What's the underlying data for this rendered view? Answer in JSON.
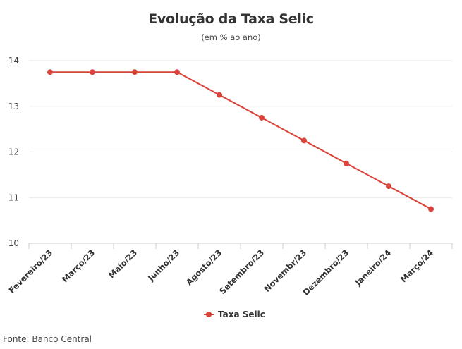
{
  "chart_data": {
    "type": "line",
    "title": "Evolução da Taxa Selic",
    "subtitle": "(em % ao ano)",
    "xlabel": "",
    "ylabel": "",
    "categories": [
      "Fevereiro/23",
      "Março/23",
      "Maio/23",
      "Junho/23",
      "Agosto/23",
      "Setembro/23",
      "Novembr/23",
      "Dezembro/23",
      "Janeiro/24",
      "Março/24"
    ],
    "series": [
      {
        "name": "Taxa Selic",
        "values": [
          13.75,
          13.75,
          13.75,
          13.75,
          13.25,
          12.75,
          12.25,
          11.75,
          11.25,
          10.75
        ],
        "color": "#d9443a"
      }
    ],
    "ylim": [
      10,
      14
    ],
    "yticks": [
      "10",
      "11",
      "12",
      "13",
      "14"
    ],
    "grid": true,
    "legend_position": "bottom-center"
  },
  "footer": {
    "source": "Fonte: Banco Central"
  }
}
